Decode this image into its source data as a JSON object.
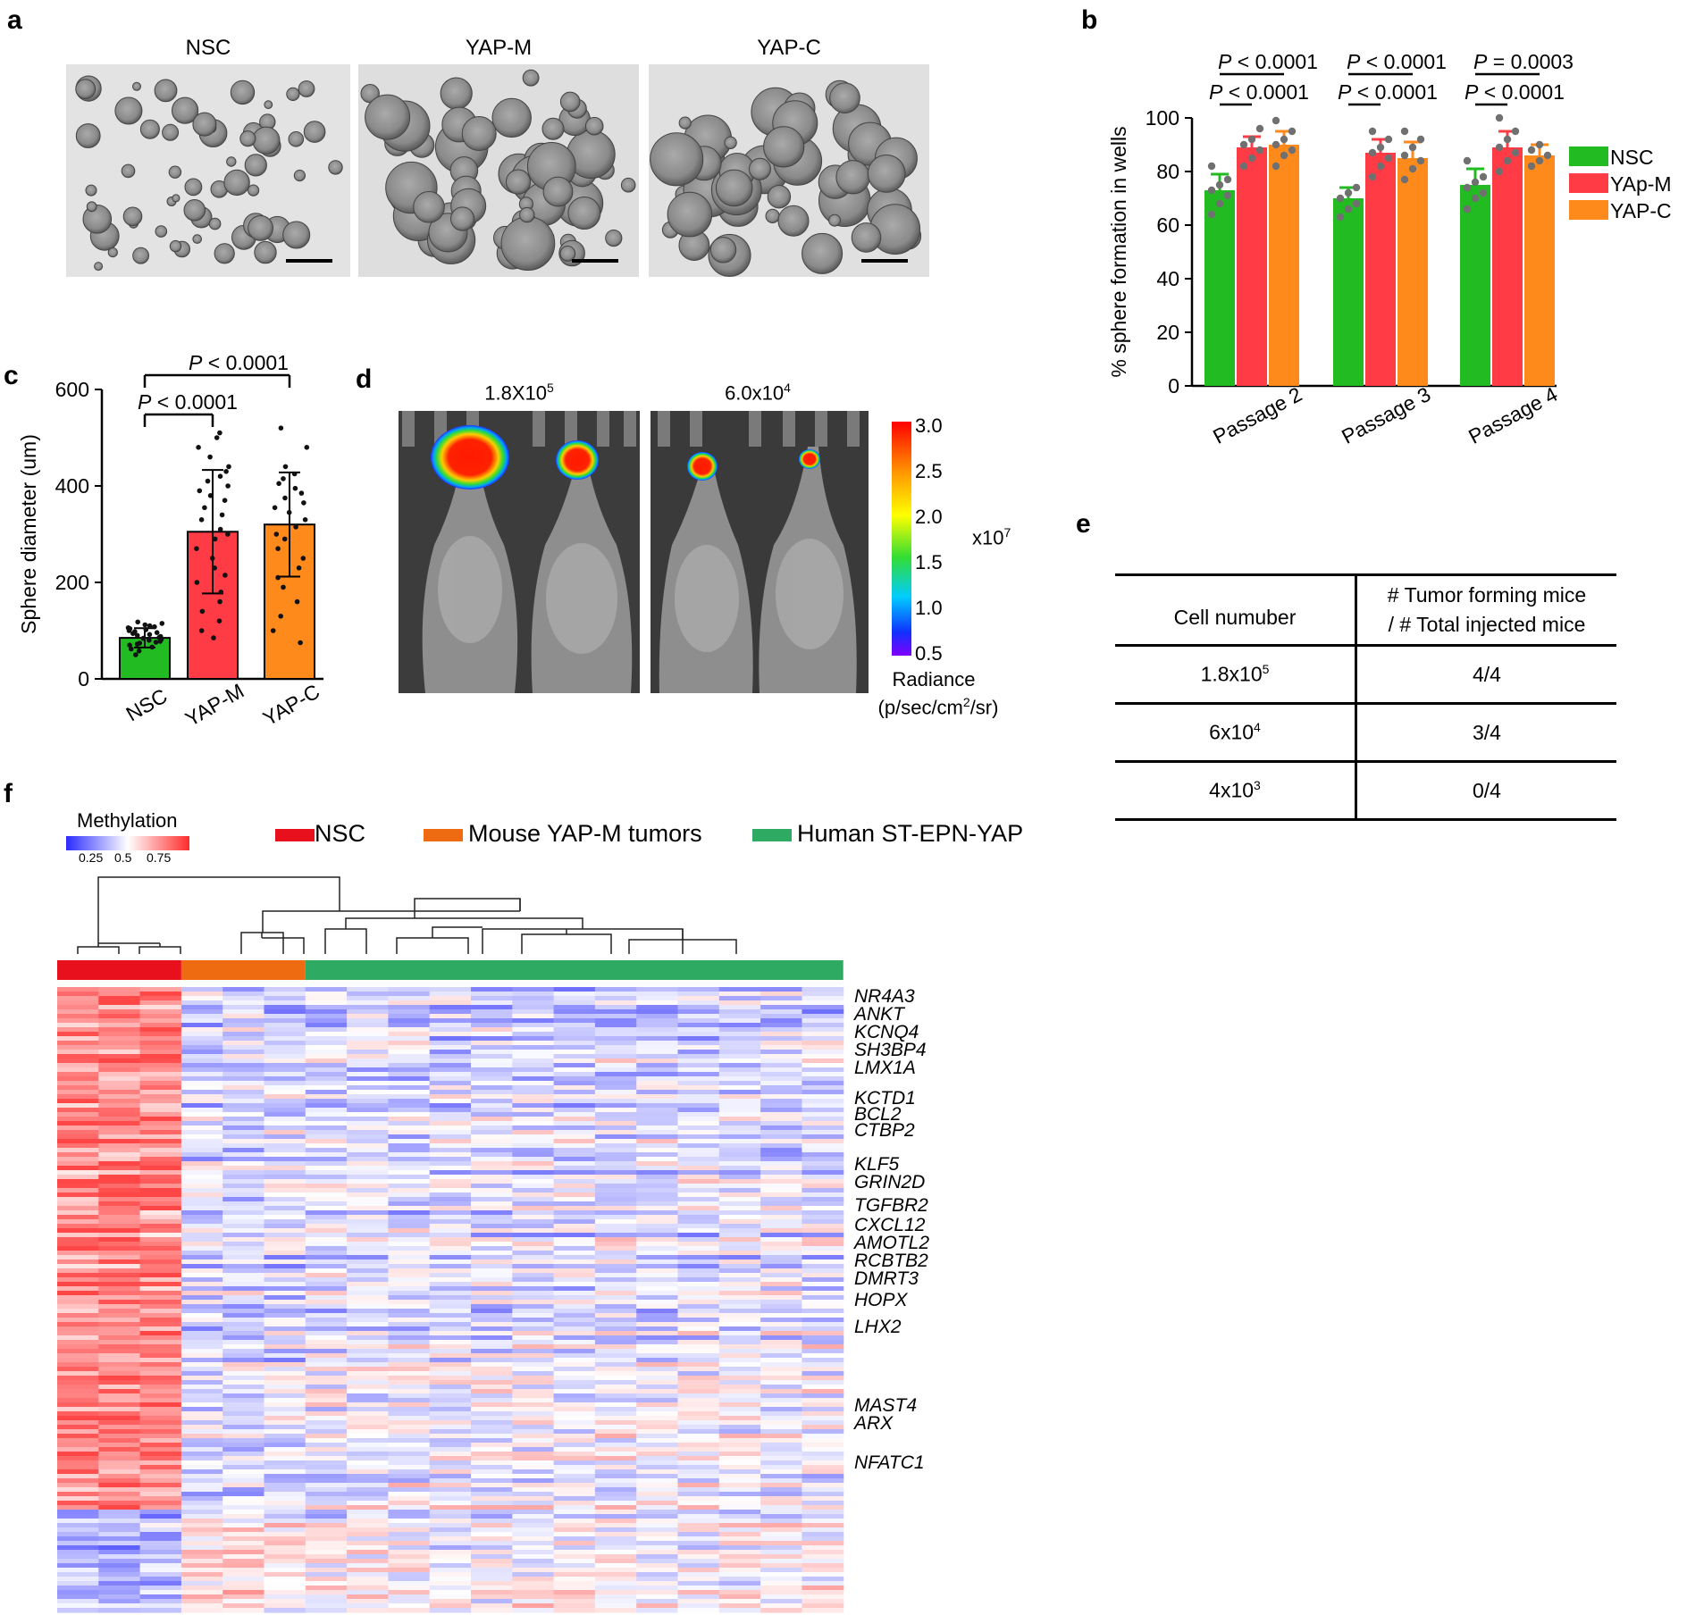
{
  "figure": {
    "panel_labels": {
      "a": "a",
      "b": "b",
      "c": "c",
      "d": "d",
      "e": "e",
      "f": "f"
    }
  },
  "panel_a": {
    "titles": [
      "NSC",
      "YAP-M",
      "YAP-C"
    ]
  },
  "panel_b": {
    "chart_data": {
      "type": "bar",
      "categories": [
        "Passage 2",
        "Passage 3",
        "Passage 4"
      ],
      "series": [
        {
          "name": "NSC",
          "values": [
            73,
            70,
            75
          ],
          "errors": [
            6,
            4,
            6
          ],
          "color": "#22bb22",
          "points": [
            [
              64,
              68,
              71,
              73,
              75,
              77,
              82
            ],
            [
              63,
              66,
              68,
              70,
              72,
              74
            ],
            [
              66,
              70,
              72,
              74,
              76,
              78,
              84
            ]
          ]
        },
        {
          "name": "YAp-M",
          "values": [
            89,
            87,
            89
          ],
          "errors": [
            4,
            5,
            6
          ],
          "color": "#ff3b45",
          "points": [
            [
              82,
              85,
              88,
              90,
              92,
              96
            ],
            [
              78,
              82,
              85,
              87,
              89,
              92,
              95
            ],
            [
              80,
              84,
              87,
              89,
              92,
              95,
              100
            ]
          ]
        },
        {
          "name": "YAP-C",
          "values": [
            90,
            85,
            86
          ],
          "errors": [
            5,
            6,
            4
          ],
          "color": "#ff8a1c",
          "points": [
            [
              82,
              86,
              88,
              90,
              92,
              95,
              99
            ],
            [
              77,
              81,
              84,
              86,
              89,
              92,
              95
            ],
            [
              82,
              84,
              86,
              88,
              90
            ]
          ]
        }
      ],
      "ylabel": "% sphere formation in wells",
      "ylim": [
        0,
        100
      ],
      "yticks": [
        "0",
        "20",
        "40",
        "60",
        "80",
        "100"
      ],
      "legend_position": "right",
      "annotations": [
        {
          "text": "P < 0.0001",
          "from": [
            0,
            0
          ],
          "to": [
            0,
            2
          ],
          "level": "top"
        },
        {
          "text": "P < 0.0001",
          "from": [
            0,
            0
          ],
          "to": [
            0,
            1
          ],
          "level": "low"
        },
        {
          "text": "P < 0.0001",
          "from": [
            1,
            0
          ],
          "to": [
            1,
            2
          ],
          "level": "top"
        },
        {
          "text": "P < 0.0001",
          "from": [
            1,
            0
          ],
          "to": [
            1,
            1
          ],
          "level": "low"
        },
        {
          "text": "P = 0.0003",
          "from": [
            2,
            0
          ],
          "to": [
            2,
            2
          ],
          "level": "top"
        },
        {
          "text": "P < 0.0001",
          "from": [
            2,
            0
          ],
          "to": [
            2,
            1
          ],
          "level": "low"
        }
      ]
    }
  },
  "panel_c": {
    "chart_data": {
      "type": "bar",
      "categories": [
        "NSC",
        "YAP-M",
        "YAP-C"
      ],
      "values": [
        85,
        305,
        320
      ],
      "errors": [
        20,
        128,
        108
      ],
      "colors": [
        "#22bb22",
        "#ff3b45",
        "#ff8a1c"
      ],
      "ylabel": "Sphere diameter (um)",
      "ylim": [
        0,
        600
      ],
      "yticks": [
        "0",
        "200",
        "400",
        "600"
      ],
      "points": [
        [
          50,
          58,
          62,
          66,
          70,
          72,
          74,
          76,
          78,
          80,
          82,
          84,
          86,
          88,
          90,
          92,
          94,
          96,
          98,
          100,
          102,
          104,
          106,
          108,
          110,
          112,
          115,
          118
        ],
        [
          85,
          100,
          120,
          140,
          160,
          180,
          200,
          215,
          230,
          250,
          270,
          290,
          300,
          310,
          330,
          340,
          355,
          370,
          380,
          390,
          400,
          410,
          420,
          430,
          440,
          460,
          480,
          500,
          510
        ],
        [
          75,
          100,
          130,
          160,
          190,
          210,
          230,
          250,
          270,
          290,
          300,
          315,
          330,
          345,
          355,
          365,
          375,
          385,
          395,
          405,
          415,
          425,
          440,
          480,
          520
        ]
      ],
      "annotations": [
        {
          "text": "P < 0.0001",
          "from": 0,
          "to": 2,
          "level": "top"
        },
        {
          "text": "P < 0.0001",
          "from": 0,
          "to": 1,
          "level": "low"
        }
      ]
    }
  },
  "panel_d": {
    "titles": [
      "1.8X10",
      "6.0x10"
    ],
    "title_sup": [
      "5",
      "4"
    ],
    "colorbar": {
      "ticks": [
        "3.0",
        "2.5",
        "2.0",
        "1.5",
        "1.0",
        "0.5"
      ],
      "multiplier": "x10",
      "multiplier_sup": "7",
      "label_line1": "Radiance",
      "label_line2_pre": "(p/sec/cm",
      "label_line2_sup": "2",
      "label_line2_post": "/sr)"
    }
  },
  "panel_e": {
    "header_col1": "Cell numuber",
    "header_col2_line1": "# Tumor forming mice",
    "header_col2_line2": "/ # Total injected mice",
    "rows": [
      {
        "base": "1.8x10",
        "exp": "5",
        "value": "4/4"
      },
      {
        "base": "6x10",
        "exp": "4",
        "value": "3/4"
      },
      {
        "base": "4x10",
        "exp": "3",
        "value": "0/4"
      }
    ]
  },
  "panel_f": {
    "colorbar_title": "Methylation",
    "colorbar_ticks": [
      "0.25",
      "0.5",
      "0.75"
    ],
    "groups": [
      {
        "name": "NSC",
        "color": "#e8101c"
      },
      {
        "name": "Mouse YAP-M tumors",
        "color": "#ef6b12"
      },
      {
        "name": "Human ST-EPN-YAP",
        "color": "#2eaa63"
      }
    ],
    "genes": [
      "NR4A3",
      "ANKT",
      "KCNQ4",
      "SH3BP4",
      "LMX1A",
      "KCTD1",
      "BCL2",
      "CTBP2",
      "KLF5",
      "GRIN2D",
      "TGFBR2",
      "CXCL12",
      "AMOTL2",
      "RCBTB2",
      "DMRT3",
      "HOPX",
      "LHX2",
      "MAST4",
      "ARX",
      "NFATC1"
    ]
  }
}
